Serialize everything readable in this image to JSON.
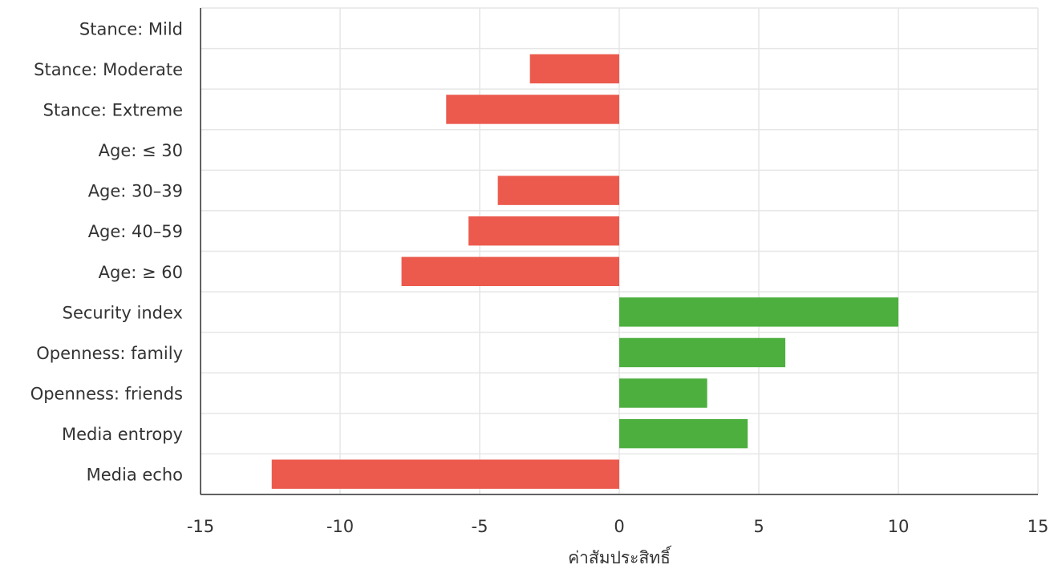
{
  "chart_data": {
    "type": "bar",
    "orientation": "horizontal",
    "categories": [
      "Stance: Mild",
      "Stance: Moderate",
      "Stance: Extreme",
      "Age: ≤ 30",
      "Age: 30–39",
      "Age: 40–59",
      "Age: ≥ 60",
      "Security index",
      "Openness: family",
      "Openness: friends",
      "Media entropy",
      "Media echo"
    ],
    "values": [
      0,
      -3.2,
      -6.2,
      0,
      -4.35,
      -5.4,
      -7.8,
      10.0,
      5.95,
      3.15,
      4.6,
      -12.45
    ],
    "xlim": [
      -15,
      15
    ],
    "xticks": [
      -15,
      -10,
      -5,
      0,
      5,
      10,
      15
    ],
    "xticklabels": [
      "-15",
      "-10",
      "-5",
      "0",
      "5",
      "10",
      "15"
    ],
    "xlabel": "ค่าสัมประสิทธิ์",
    "ylabel": "",
    "title": "",
    "grid": true,
    "colors": {
      "positive": "#4caf3e",
      "negative": "#eb5a4d"
    }
  }
}
